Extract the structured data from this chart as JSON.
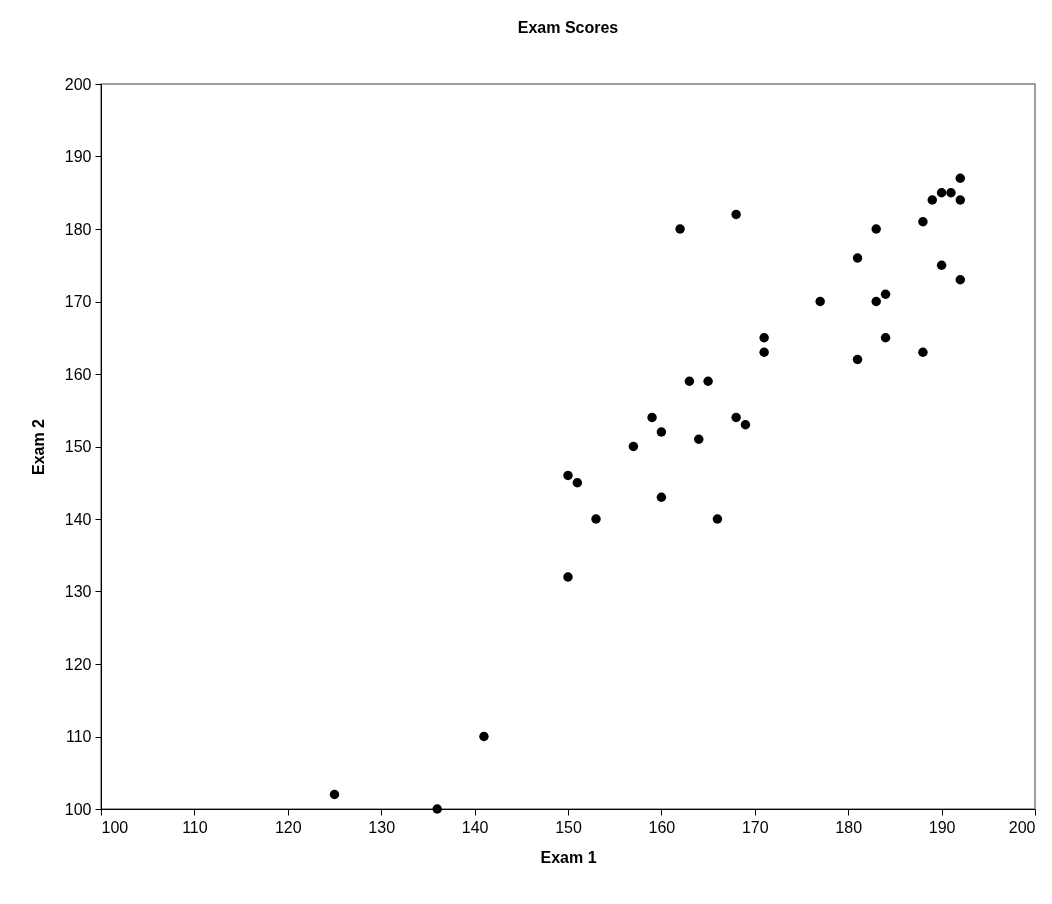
{
  "chart_data": {
    "type": "scatter",
    "title": "Exam Scores",
    "xlabel": "Exam 1",
    "ylabel": "Exam 2",
    "x": [
      192,
      190,
      191,
      189,
      192,
      188,
      183,
      162,
      168,
      181,
      190,
      192,
      177,
      183,
      184,
      171,
      171,
      184,
      188,
      181,
      163,
      165,
      159,
      168,
      169,
      160,
      164,
      157,
      150,
      151,
      160,
      153,
      166,
      150,
      141,
      125,
      136
    ],
    "series": [
      {
        "color": "#000000",
        "values": [
          187,
          185,
          185,
          184,
          184,
          181,
          180,
          180,
          182,
          176,
          175,
          173,
          170,
          170,
          171,
          165,
          163,
          165,
          163,
          162,
          159,
          159,
          154,
          154,
          153,
          152,
          151,
          150,
          146,
          145,
          143,
          140,
          140,
          132,
          110,
          102,
          100
        ]
      }
    ],
    "xlim": [
      100,
      200
    ],
    "ylim": [
      100,
      200
    ],
    "xticks": [
      100,
      110,
      120,
      130,
      140,
      150,
      160,
      170,
      180,
      190,
      200
    ],
    "yticks": [
      100,
      110,
      120,
      130,
      140,
      150,
      160,
      170,
      180,
      190,
      200
    ],
    "grid": false,
    "marker": "circle"
  }
}
